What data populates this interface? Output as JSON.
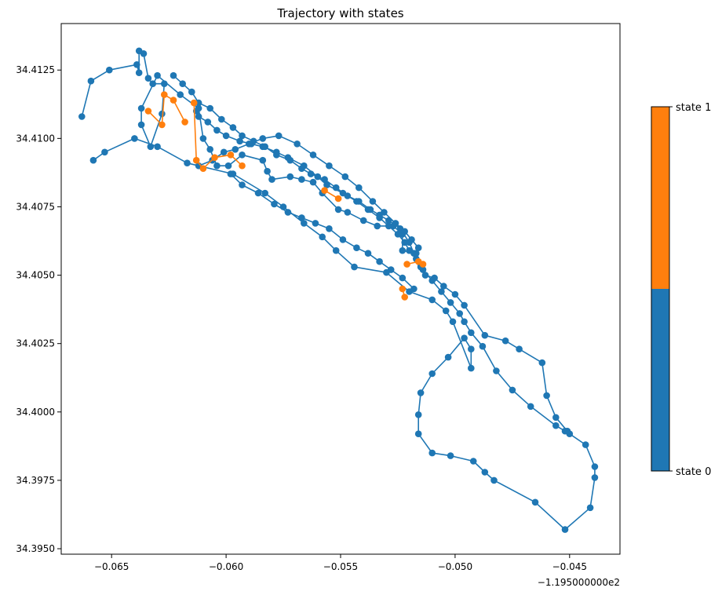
{
  "chart_data": {
    "type": "line",
    "title": "Trajectory with states",
    "xlabel": "",
    "ylabel": "",
    "x_offset_label": "−1.195000000e2",
    "xlim": [
      -0.0672,
      -0.0428
    ],
    "ylim": [
      34.3948,
      34.4142
    ],
    "x_ticks": [
      -0.065,
      -0.06,
      -0.055,
      -0.05,
      -0.045
    ],
    "x_tick_labels": [
      "−0.065",
      "−0.060",
      "−0.055",
      "−0.050",
      "−0.045"
    ],
    "y_ticks": [
      34.395,
      34.3975,
      34.4,
      34.4025,
      34.405,
      34.4075,
      34.41,
      34.4125
    ],
    "y_tick_labels": [
      "34.3950",
      "34.3975",
      "34.4000",
      "34.4025",
      "34.4050",
      "34.4075",
      "34.4100",
      "34.4125"
    ],
    "grid": false,
    "legend": "none",
    "colorbar": {
      "position": "right",
      "labels": [
        "state 0",
        "state 1"
      ],
      "colors": [
        "#1f77b4",
        "#ff7f0e"
      ]
    },
    "series": [
      {
        "color": "#1f77b4",
        "x": [
          -0.0663,
          -0.0659,
          -0.0651,
          -0.0639,
          -0.0638,
          -0.0638,
          -0.0636,
          -0.0634,
          -0.0632,
          -0.0627,
          -0.0628,
          -0.0633,
          -0.0637,
          -0.0637,
          -0.063,
          -0.062,
          -0.0612,
          -0.061,
          -0.0607,
          -0.0604,
          -0.0599,
          -0.0593,
          -0.0584,
          -0.0582,
          -0.058,
          -0.0572,
          -0.0567,
          -0.0562,
          -0.0558,
          -0.0551,
          -0.0547,
          -0.054,
          -0.0534,
          -0.0527,
          -0.0523,
          -0.0523,
          -0.0517,
          -0.0515,
          -0.0513,
          -0.0509,
          -0.0505,
          -0.05,
          -0.0496,
          -0.0487,
          -0.0478,
          -0.0472,
          -0.0462,
          -0.046,
          -0.0456,
          -0.045,
          -0.0443,
          -0.0439,
          -0.0439,
          -0.0441,
          -0.0452,
          -0.0465,
          -0.0483,
          -0.0487,
          -0.0492,
          -0.0502,
          -0.051,
          -0.0516,
          -0.0516,
          -0.0515,
          -0.051,
          -0.0503,
          -0.0496,
          -0.0493,
          -0.0493,
          -0.0501,
          -0.0504,
          -0.051,
          -0.052,
          -0.053,
          -0.0544,
          -0.0552,
          -0.0558,
          -0.0566,
          -0.0575,
          -0.0583,
          -0.0597,
          -0.0617,
          -0.063,
          -0.064,
          -0.0653,
          -0.0658
        ],
        "y": [
          34.4108,
          34.4121,
          34.4125,
          34.4127,
          34.4124,
          34.4132,
          34.4131,
          34.4122,
          34.412,
          34.412,
          34.4109,
          34.4097,
          34.4105,
          34.4111,
          34.4123,
          34.4116,
          34.4111,
          34.41,
          34.4096,
          34.409,
          34.409,
          34.4094,
          34.4092,
          34.4088,
          34.4085,
          34.4086,
          34.4085,
          34.4084,
          34.408,
          34.4074,
          34.4073,
          34.407,
          34.4068,
          34.4068,
          34.4065,
          34.4059,
          34.4058,
          34.4054,
          34.405,
          34.4049,
          34.4046,
          34.4043,
          34.4039,
          34.4028,
          34.4026,
          34.4023,
          34.4018,
          34.4006,
          34.3998,
          34.3992,
          34.3988,
          34.398,
          34.3976,
          34.3965,
          34.3957,
          34.3967,
          34.3975,
          34.3978,
          34.3982,
          34.3984,
          34.3985,
          34.3992,
          34.3999,
          34.4007,
          34.4014,
          34.402,
          34.4027,
          34.4023,
          34.4016,
          34.4033,
          34.4037,
          34.4041,
          34.4044,
          34.4051,
          34.4053,
          34.4059,
          34.4064,
          34.4069,
          34.4075,
          34.408,
          34.4087,
          34.4091,
          34.4097,
          34.41,
          34.4095,
          34.4092
        ]
      },
      {
        "color": "#1f77b4",
        "x": [
          -0.0613,
          -0.0612,
          -0.0608,
          -0.0604,
          -0.06,
          -0.0594,
          -0.0589,
          -0.0584,
          -0.0578,
          -0.0573,
          -0.0566,
          -0.056,
          -0.0556,
          -0.0549,
          -0.0543,
          -0.0538,
          -0.0533,
          -0.0529,
          -0.0525,
          -0.0522,
          -0.052,
          -0.0517,
          -0.0514,
          -0.051,
          -0.0506,
          -0.0502,
          -0.0498,
          -0.0496,
          -0.0493,
          -0.0488,
          -0.0482,
          -0.0475,
          -0.0467,
          -0.0456,
          -0.0452,
          -0.0451
        ],
        "y": [
          34.411,
          34.4108,
          34.4106,
          34.4103,
          34.4101,
          34.4099,
          34.4098,
          34.4097,
          34.4095,
          34.4093,
          34.409,
          34.4086,
          34.4083,
          34.408,
          34.4077,
          34.4074,
          34.4071,
          34.4068,
          34.4065,
          34.4062,
          34.4059,
          34.4056,
          34.4052,
          34.4048,
          34.4044,
          34.404,
          34.4036,
          34.4033,
          34.4029,
          34.4024,
          34.4015,
          34.4008,
          34.4002,
          34.3995,
          34.3993,
          34.3993
        ]
      },
      {
        "color": "#1f77b4",
        "x": [
          -0.0623,
          -0.0619,
          -0.0615,
          -0.0612,
          -0.0607,
          -0.0602,
          -0.0597,
          -0.0593,
          -0.0588,
          -0.0583,
          -0.0578,
          -0.0572,
          -0.0567,
          -0.0563,
          -0.0557,
          -0.0552,
          -0.0547,
          -0.0542,
          -0.0537,
          -0.0533,
          -0.0529,
          -0.0524,
          -0.052,
          -0.0518,
          -0.0515
        ],
        "y": [
          34.4123,
          34.412,
          34.4117,
          34.4113,
          34.4111,
          34.4107,
          34.4104,
          34.4101,
          34.4099,
          34.4097,
          34.4094,
          34.4092,
          34.4089,
          34.4087,
          34.4085,
          34.4082,
          34.4079,
          34.4077,
          34.4074,
          34.4072,
          34.407,
          34.4067,
          34.4062,
          34.4058,
          34.4053
        ]
      },
      {
        "color": "#1f77b4",
        "x": [
          -0.0612,
          -0.0606,
          -0.0601,
          -0.0596,
          -0.059,
          -0.0584,
          -0.0577,
          -0.0569,
          -0.0562,
          -0.0555,
          -0.0548,
          -0.0542,
          -0.0536,
          -0.0531,
          -0.0526,
          -0.0522,
          -0.0519,
          -0.0516
        ],
        "y": [
          34.409,
          34.4092,
          34.4095,
          34.4096,
          34.4098,
          34.41,
          34.4101,
          34.4098,
          34.4094,
          34.409,
          34.4086,
          34.4082,
          34.4077,
          34.4073,
          34.4069,
          34.4066,
          34.4063,
          34.406
        ]
      },
      {
        "color": "#1f77b4",
        "x": [
          -0.0598,
          -0.0593,
          -0.0586,
          -0.0579,
          -0.0573,
          -0.0567,
          -0.0561,
          -0.0555,
          -0.0549,
          -0.0543,
          -0.0538,
          -0.0533,
          -0.0528,
          -0.0523,
          -0.0518
        ],
        "y": [
          34.4087,
          34.4083,
          34.408,
          34.4076,
          34.4073,
          34.4071,
          34.4069,
          34.4067,
          34.4063,
          34.406,
          34.4058,
          34.4055,
          34.4052,
          34.4049,
          34.4045
        ]
      }
    ],
    "state_1_segments": [
      {
        "color": "#ff7f0e",
        "x": [
          -0.0634,
          -0.0628,
          -0.0627,
          -0.0623,
          -0.0618
        ],
        "y": [
          34.411,
          34.4105,
          34.4116,
          34.4114,
          34.4106
        ]
      },
      {
        "color": "#ff7f0e",
        "x": [
          -0.0614,
          -0.0613,
          -0.061,
          -0.0605,
          -0.0598,
          -0.0593
        ],
        "y": [
          34.4113,
          34.4092,
          34.4089,
          34.4093,
          34.4094,
          34.409
        ]
      },
      {
        "color": "#ff7f0e",
        "x": [
          -0.0557,
          -0.0551
        ],
        "y": [
          34.4081,
          34.4078
        ]
      },
      {
        "color": "#ff7f0e",
        "x": [
          -0.0521,
          -0.0516,
          -0.0514
        ],
        "y": [
          34.4054,
          34.4055,
          34.4054
        ]
      },
      {
        "color": "#ff7f0e",
        "x": [
          -0.0523,
          -0.0522
        ],
        "y": [
          34.4045,
          34.4042
        ]
      }
    ]
  }
}
